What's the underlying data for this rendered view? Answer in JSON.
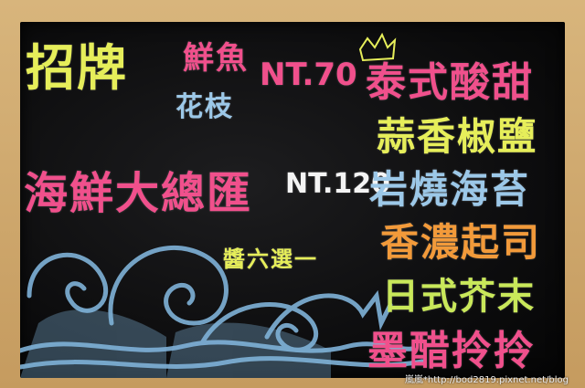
{
  "menu": {
    "signature_label": "招牌",
    "fresh_fish": "鮮魚",
    "squid": "花枝",
    "price_1": "NT.70",
    "thai_sweet_sour": "泰式酸甜",
    "garlic_pepper_salt": "蒜香椒鹽",
    "seafood_platter": "海鮮大總匯",
    "price_2": "NT.120",
    "grilled_seaweed": "岩燒海苔",
    "rich_cheese": "香濃起司",
    "choose_one": "醬六選一",
    "japanese_wasabi": "日式芥末",
    "squid_ink": "墨醋拎拎"
  },
  "watermark": "嵐嵐*http://bod2819.pixnet.net/blog",
  "colors": {
    "yellow": "#e6ee5a",
    "pink": "#f0508c",
    "blue": "#9cc8e8",
    "white": "#f4f4f4",
    "orange": "#f29a3a",
    "green": "#c9e85a",
    "wave_blue": "#7fb2d8"
  }
}
